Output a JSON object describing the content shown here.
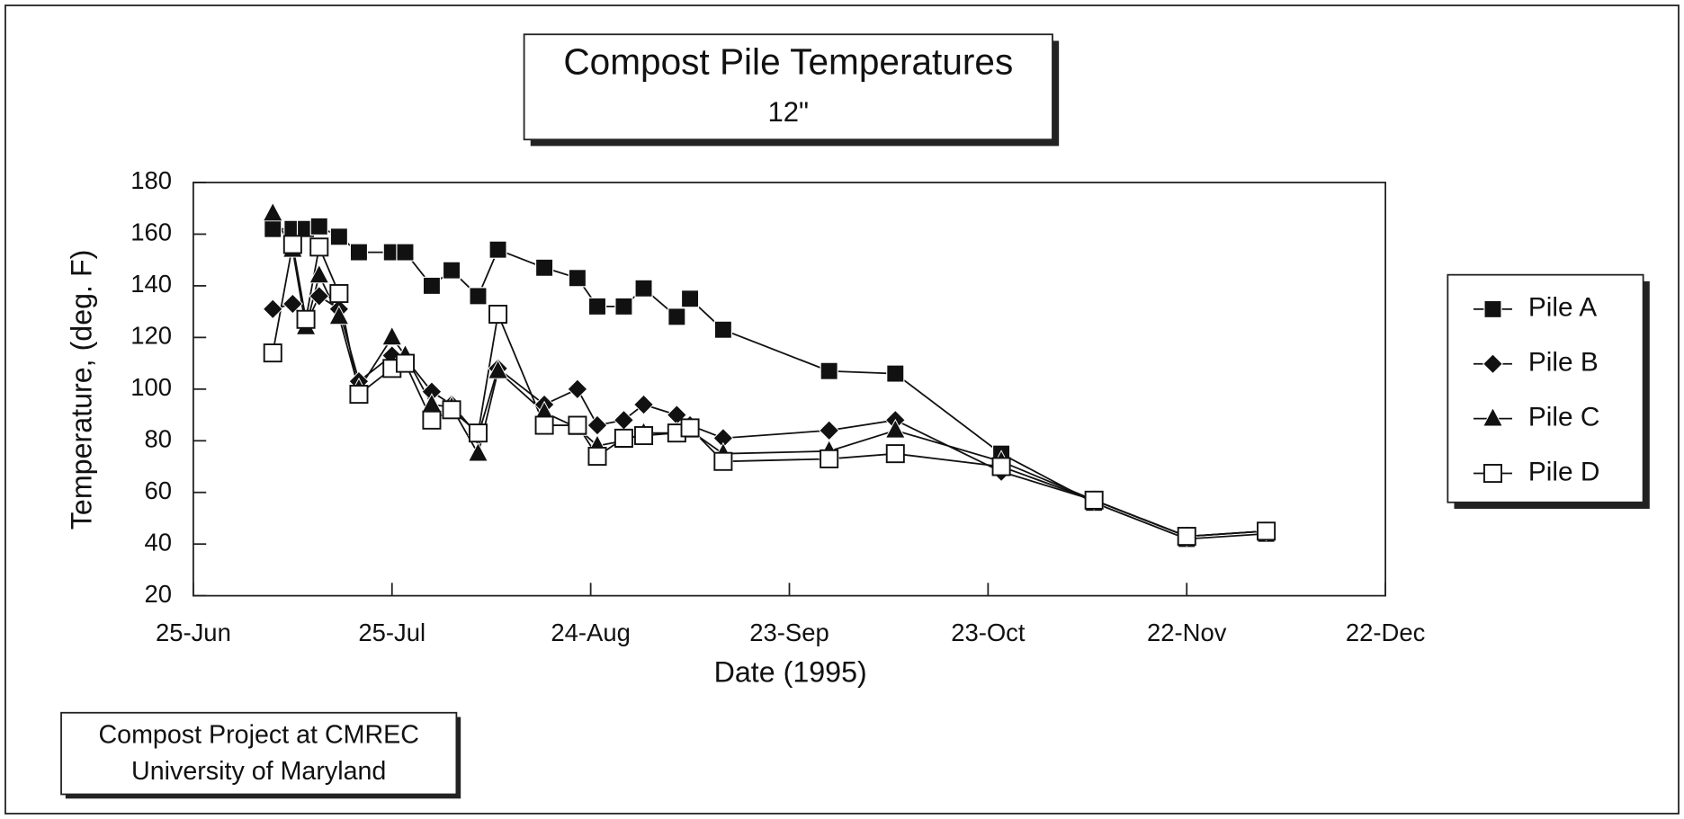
{
  "chart_data": {
    "type": "line",
    "title": "Compost Pile Temperatures",
    "subtitle": "12\"",
    "x_label": "Date (1995)",
    "y_label": "Temperature, (deg. F)",
    "note": [
      "Compost Project at CMREC",
      "University of Maryland"
    ],
    "x": [
      12,
      15,
      17,
      19,
      22,
      25,
      30,
      32,
      36,
      39,
      43,
      46,
      53,
      58,
      61,
      65,
      68,
      73,
      75,
      80,
      96,
      106,
      122,
      136,
      150,
      162
    ],
    "xlim": [
      0,
      180
    ],
    "xticks": [
      {
        "value": 0,
        "label": "25-Jun"
      },
      {
        "value": 30,
        "label": "25-Jul"
      },
      {
        "value": 60,
        "label": "24-Aug"
      },
      {
        "value": 90,
        "label": "23-Sep"
      },
      {
        "value": 120,
        "label": "23-Oct"
      },
      {
        "value": 150,
        "label": "22-Nov"
      },
      {
        "value": 180,
        "label": "22-Dec"
      }
    ],
    "ylim": [
      20,
      180
    ],
    "yticks": [
      20,
      40,
      60,
      80,
      100,
      120,
      140,
      160,
      180
    ],
    "grid": false,
    "legend": "right",
    "series": [
      {
        "name": "Pile A",
        "color": "#111111",
        "marker": "square",
        "values": [
          162,
          162,
          162,
          163,
          159,
          153,
          153,
          153,
          140,
          146,
          136,
          154,
          147,
          143,
          132,
          132,
          139,
          128,
          135,
          123,
          107,
          106,
          75,
          56,
          42,
          44
        ]
      },
      {
        "name": "Pile B",
        "color": "#111111",
        "marker": "diamond",
        "values": [
          131,
          133,
          125,
          136,
          131,
          103,
          113,
          112,
          99,
          94,
          82,
          108,
          94,
          100,
          86,
          88,
          94,
          90,
          86,
          81,
          84,
          88,
          68,
          57,
          43,
          45
        ]
      },
      {
        "name": "Pile C",
        "color": "#111111",
        "marker": "triangle",
        "values": [
          168,
          154,
          124,
          144,
          128,
          100,
          120,
          113,
          94,
          93,
          75,
          107,
          91,
          85,
          78,
          80,
          83,
          83,
          84,
          75,
          76,
          84,
          72,
          57,
          43,
          45
        ]
      },
      {
        "name": "Pile D",
        "color": "#111111",
        "marker": "open-square",
        "values": [
          114,
          156,
          127,
          155,
          137,
          98,
          108,
          110,
          88,
          92,
          83,
          129,
          86,
          86,
          74,
          81,
          82,
          83,
          85,
          72,
          73,
          75,
          70,
          57,
          43,
          45
        ]
      }
    ]
  }
}
